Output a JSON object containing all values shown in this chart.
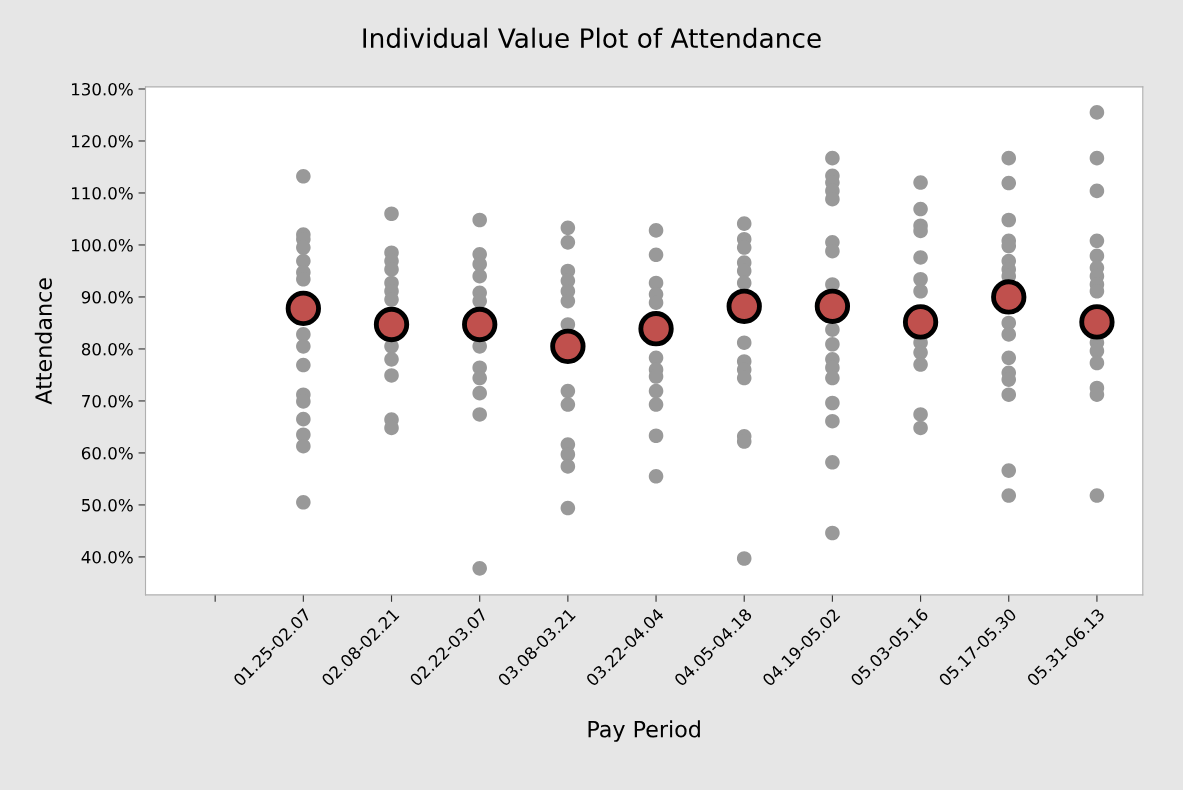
{
  "chart_data": {
    "type": "scatter",
    "title": "Individual Value Plot of Attendance",
    "xlabel": "Pay Period",
    "ylabel": "Attendance",
    "categories": [
      null,
      "01.25-02.07",
      "02.08-02.21",
      "02.22-03.07",
      "03.08-03.21",
      "03.22-04.04",
      "04.05-04.18",
      "04.19-05.02",
      "05.03-05.16",
      "05.17-05.30",
      "05.31-06.13"
    ],
    "ylim": [
      32.7,
      130.4
    ],
    "yticks": [
      {
        "value": 40,
        "label": "40.0%"
      },
      {
        "value": 50,
        "label": "50.0%"
      },
      {
        "value": 60,
        "label": "60.0%"
      },
      {
        "value": 70,
        "label": "70.0%"
      },
      {
        "value": 80,
        "label": "80.0%"
      },
      {
        "value": 90,
        "label": "90.0%"
      },
      {
        "value": 100,
        "label": "100.0%"
      },
      {
        "value": 110,
        "label": "110.0%"
      },
      {
        "value": 120,
        "label": "120.0%"
      },
      {
        "value": 130,
        "label": "130.0%"
      }
    ],
    "marker": "circle",
    "grid": false,
    "series": [
      {
        "color": "#999999",
        "x": [
          "01.25-02.07",
          "01.25-02.07",
          "01.25-02.07",
          "01.25-02.07",
          "01.25-02.07",
          "01.25-02.07",
          "01.25-02.07",
          "01.25-02.07",
          "01.25-02.07",
          "01.25-02.07",
          "01.25-02.07",
          "01.25-02.07",
          "01.25-02.07",
          "01.25-02.07",
          "01.25-02.07",
          "01.25-02.07",
          "02.08-02.21",
          "02.08-02.21",
          "02.08-02.21",
          "02.08-02.21",
          "02.08-02.21",
          "02.08-02.21",
          "02.08-02.21",
          "02.08-02.21",
          "02.08-02.21",
          "02.08-02.21",
          "02.08-02.21",
          "02.08-02.21",
          "02.22-03.07",
          "02.22-03.07",
          "02.22-03.07",
          "02.22-03.07",
          "02.22-03.07",
          "02.22-03.07",
          "02.22-03.07",
          "02.22-03.07",
          "02.22-03.07",
          "02.22-03.07",
          "02.22-03.07",
          "02.22-03.07",
          "03.08-03.21",
          "03.08-03.21",
          "03.08-03.21",
          "03.08-03.21",
          "03.08-03.21",
          "03.08-03.21",
          "03.08-03.21",
          "03.08-03.21",
          "03.08-03.21",
          "03.08-03.21",
          "03.08-03.21",
          "03.08-03.21",
          "03.08-03.21",
          "03.22-04.04",
          "03.22-04.04",
          "03.22-04.04",
          "03.22-04.04",
          "03.22-04.04",
          "03.22-04.04",
          "03.22-04.04",
          "03.22-04.04",
          "03.22-04.04",
          "03.22-04.04",
          "03.22-04.04",
          "03.22-04.04",
          "04.05-04.18",
          "04.05-04.18",
          "04.05-04.18",
          "04.05-04.18",
          "04.05-04.18",
          "04.05-04.18",
          "04.05-04.18",
          "04.05-04.18",
          "04.05-04.18",
          "04.05-04.18",
          "04.05-04.18",
          "04.05-04.18",
          "04.05-04.18",
          "04.19-05.02",
          "04.19-05.02",
          "04.19-05.02",
          "04.19-05.02",
          "04.19-05.02",
          "04.19-05.02",
          "04.19-05.02",
          "04.19-05.02",
          "04.19-05.02",
          "04.19-05.02",
          "04.19-05.02",
          "04.19-05.02",
          "04.19-05.02",
          "04.19-05.02",
          "04.19-05.02",
          "04.19-05.02",
          "04.19-05.02",
          "05.03-05.16",
          "05.03-05.16",
          "05.03-05.16",
          "05.03-05.16",
          "05.03-05.16",
          "05.03-05.16",
          "05.03-05.16",
          "05.03-05.16",
          "05.03-05.16",
          "05.03-05.16",
          "05.03-05.16",
          "05.03-05.16",
          "05.17-05.30",
          "05.17-05.30",
          "05.17-05.30",
          "05.17-05.30",
          "05.17-05.30",
          "05.17-05.30",
          "05.17-05.30",
          "05.17-05.30",
          "05.17-05.30",
          "05.17-05.30",
          "05.17-05.30",
          "05.17-05.30",
          "05.17-05.30",
          "05.17-05.30",
          "05.17-05.30",
          "05.17-05.30",
          "05.31-06.13",
          "05.31-06.13",
          "05.31-06.13",
          "05.31-06.13",
          "05.31-06.13",
          "05.31-06.13",
          "05.31-06.13",
          "05.31-06.13",
          "05.31-06.13",
          "05.31-06.13",
          "05.31-06.13",
          "05.31-06.13",
          "05.31-06.13",
          "05.31-06.13",
          "05.31-06.13"
        ],
        "values": [
          113.2,
          102.0,
          101.1,
          99.5,
          96.9,
          94.7,
          93.4,
          82.8,
          80.5,
          76.9,
          71.2,
          69.9,
          66.5,
          63.5,
          61.3,
          50.5,
          106.0,
          98.5,
          96.9,
          95.3,
          92.7,
          91.1,
          89.5,
          80.5,
          78.0,
          74.9,
          66.4,
          64.8,
          104.8,
          98.2,
          96.3,
          94.0,
          90.8,
          89.2,
          80.5,
          76.4,
          74.4,
          71.5,
          67.4,
          37.8,
          103.3,
          100.5,
          95.0,
          93.1,
          91.1,
          89.2,
          84.7,
          71.9,
          69.3,
          61.6,
          59.7,
          57.4,
          49.4,
          102.8,
          98.1,
          92.7,
          90.5,
          88.9,
          78.3,
          76.0,
          74.7,
          71.9,
          69.3,
          63.3,
          55.5,
          104.1,
          101.1,
          99.5,
          96.6,
          95.0,
          92.7,
          81.2,
          77.6,
          76.0,
          74.4,
          63.2,
          62.2,
          39.7,
          116.7,
          113.3,
          112.0,
          110.4,
          108.8,
          100.5,
          98.8,
          92.4,
          83.7,
          80.9,
          78.0,
          76.4,
          74.4,
          69.6,
          66.1,
          58.2,
          44.6,
          112.0,
          106.9,
          103.7,
          102.7,
          97.6,
          93.4,
          91.1,
          81.2,
          79.3,
          77.0,
          67.4,
          64.8,
          116.7,
          111.9,
          104.8,
          100.8,
          99.8,
          96.9,
          95.3,
          94.0,
          85.0,
          82.8,
          78.3,
          75.4,
          74.1,
          71.2,
          56.6,
          51.8,
          125.5,
          116.7,
          110.4,
          100.8,
          97.9,
          95.6,
          94.0,
          92.4,
          91.1,
          81.2,
          79.6,
          77.3,
          72.5,
          71.2,
          51.8
        ]
      },
      {
        "color": "#c0504d",
        "values": [
          null,
          87.8,
          84.7,
          84.7,
          80.5,
          83.9,
          88.2,
          88.2,
          85.2,
          90.0,
          85.2
        ]
      }
    ]
  }
}
